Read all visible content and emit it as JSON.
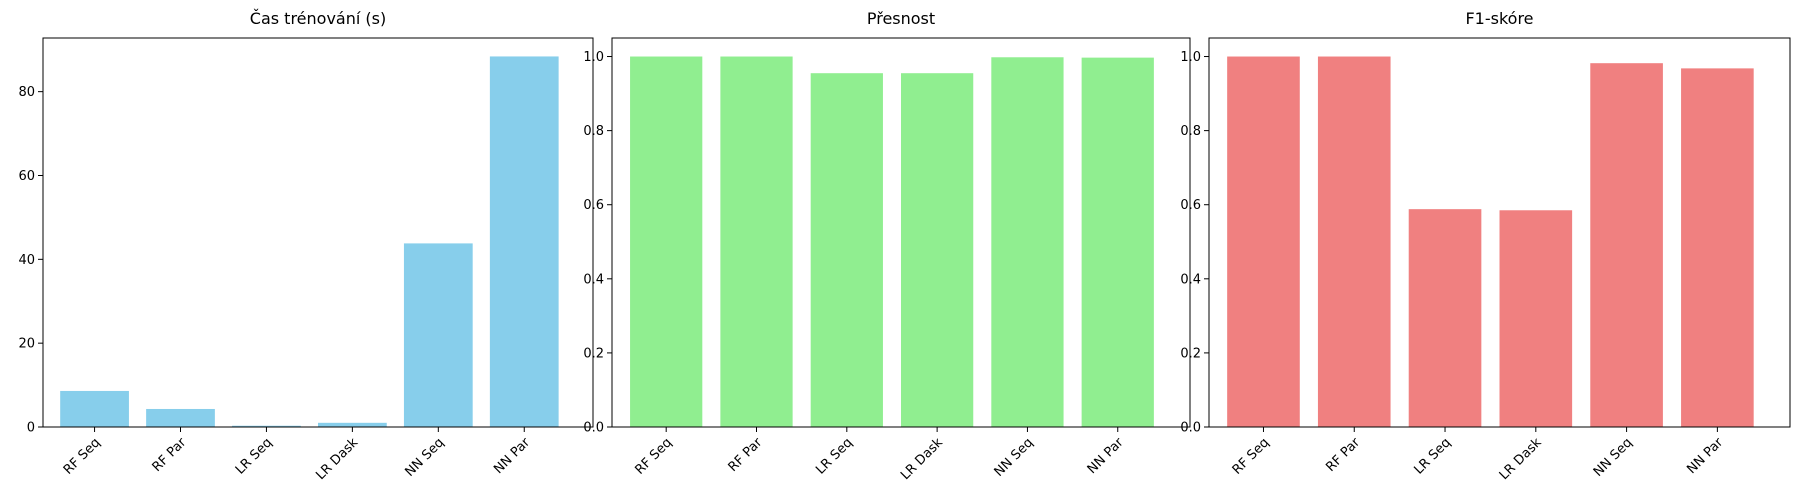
{
  "chart_data": [
    {
      "type": "bar",
      "title": "Čas trénování (s)",
      "categories": [
        "RF Seq",
        "RF Par",
        "LR Seq",
        "LR Dask",
        "NN Seq",
        "NN Par"
      ],
      "values": [
        8.6,
        4.3,
        0.3,
        1.0,
        43.8,
        88.4
      ],
      "xlabel": "",
      "ylabel": "",
      "ylim": [
        0,
        92.8
      ],
      "yticks": [
        0,
        20,
        40,
        60,
        80
      ],
      "ytick_labels": [
        "0",
        "20",
        "40",
        "60",
        "80"
      ],
      "color": "#87ceeb",
      "grid": false,
      "legend": "none"
    },
    {
      "type": "bar",
      "title": "Přesnost",
      "categories": [
        "RF Seq",
        "RF Par",
        "LR Seq",
        "LR Dask",
        "NN Seq",
        "NN Par"
      ],
      "values": [
        1.0,
        1.0,
        0.955,
        0.955,
        0.998,
        0.997
      ],
      "xlabel": "",
      "ylabel": "",
      "ylim": [
        0,
        1.05
      ],
      "yticks": [
        0,
        0.2,
        0.4,
        0.6,
        0.8,
        1.0
      ],
      "ytick_labels": [
        "0.0",
        "0.2",
        "0.4",
        "0.6",
        "0.8",
        "1.0"
      ],
      "color": "#90ee90",
      "grid": false,
      "legend": "none"
    },
    {
      "type": "bar",
      "title": "F1-skóre",
      "categories": [
        "RF Seq",
        "RF Par",
        "LR Seq",
        "LR Dask",
        "NN Seq",
        "NN Par"
      ],
      "values": [
        1.0,
        1.0,
        0.588,
        0.585,
        0.982,
        0.968
      ],
      "xlabel": "",
      "ylabel": "",
      "ylim": [
        0,
        1.05
      ],
      "yticks": [
        0,
        0.2,
        0.4,
        0.6,
        0.8,
        1.0
      ],
      "ytick_labels": [
        "0.0",
        "0.2",
        "0.4",
        "0.6",
        "0.8",
        "1.0"
      ],
      "color": "#f08080",
      "grid": false,
      "legend": "none"
    }
  ]
}
